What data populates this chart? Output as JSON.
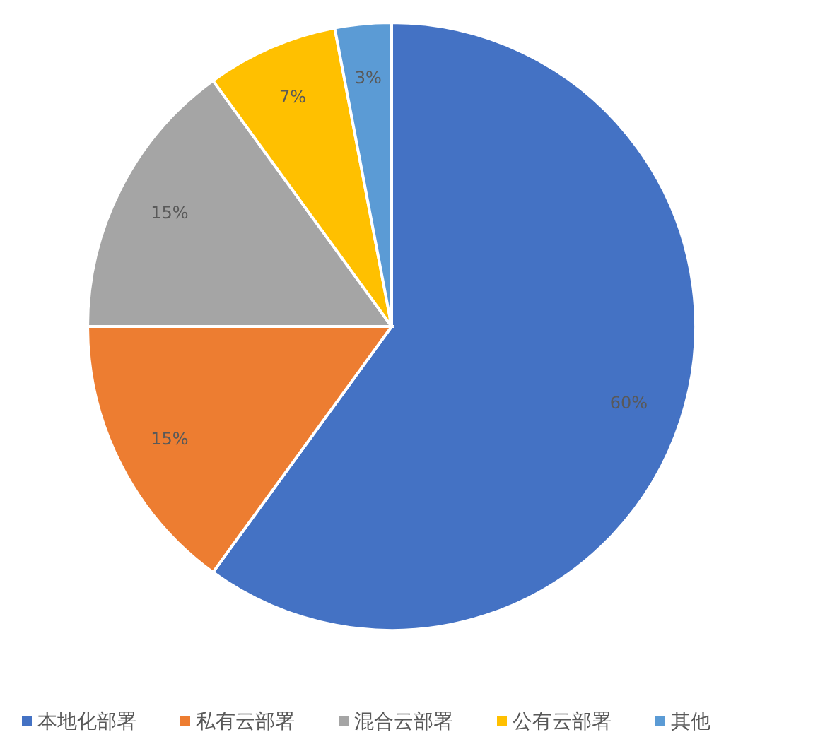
{
  "chart_data": {
    "type": "pie",
    "categories": [
      "本地化部署",
      "私有云部署",
      "混合云部署",
      "公有云部署",
      "其他"
    ],
    "values": [
      60,
      15,
      15,
      7,
      3
    ],
    "colors": [
      "#4472c4",
      "#ed7d31",
      "#a5a5a5",
      "#ffc000",
      "#5b9bd5"
    ],
    "value_labels": [
      "60%",
      "15%",
      "15%",
      "7%",
      "3%"
    ],
    "legend": "bottom"
  }
}
